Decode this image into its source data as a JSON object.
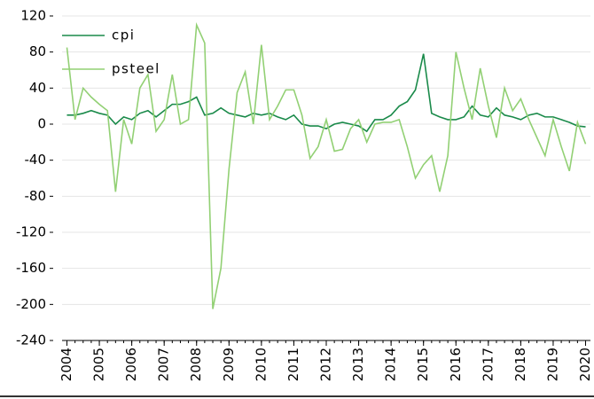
{
  "chart_data": {
    "type": "line",
    "x": [
      2004,
      2004.25,
      2004.5,
      2004.75,
      2005,
      2005.25,
      2005.5,
      2005.75,
      2006,
      2006.25,
      2006.5,
      2006.75,
      2007,
      2007.25,
      2007.5,
      2007.75,
      2008,
      2008.25,
      2008.5,
      2008.75,
      2009,
      2009.25,
      2009.5,
      2009.75,
      2010,
      2010.25,
      2010.5,
      2010.75,
      2011,
      2011.25,
      2011.5,
      2011.75,
      2012,
      2012.25,
      2012.5,
      2012.75,
      2013,
      2013.25,
      2013.5,
      2013.75,
      2014,
      2014.25,
      2014.5,
      2014.75,
      2015,
      2015.25,
      2015.5,
      2015.75,
      2016,
      2016.25,
      2016.5,
      2016.75,
      2017,
      2017.25,
      2017.5,
      2017.75,
      2018,
      2018.25,
      2018.5,
      2018.75,
      2019,
      2019.25,
      2019.5,
      2019.75,
      2020
    ],
    "series": [
      {
        "name": "cpi",
        "color": "#1a8a4a",
        "values": [
          10,
          10,
          12,
          15,
          12,
          10,
          0,
          8,
          5,
          12,
          15,
          8,
          15,
          22,
          22,
          25,
          30,
          10,
          12,
          18,
          12,
          10,
          8,
          12,
          10,
          12,
          8,
          5,
          10,
          0,
          -2,
          -2,
          -5,
          0,
          2,
          0,
          -2,
          -8,
          5,
          5,
          10,
          20,
          25,
          38,
          78,
          12,
          8,
          5,
          5,
          8,
          20,
          10,
          8,
          18,
          10,
          8,
          5,
          10,
          12,
          8,
          8,
          5,
          2,
          -2,
          -3
        ]
      },
      {
        "name": "psteel",
        "color": "#92d074",
        "values": [
          85,
          5,
          40,
          30,
          22,
          15,
          -75,
          5,
          -22,
          40,
          55,
          -8,
          5,
          55,
          0,
          5,
          110,
          90,
          -205,
          -160,
          -50,
          35,
          58,
          0,
          88,
          5,
          20,
          38,
          38,
          10,
          -38,
          -25,
          5,
          -30,
          -28,
          -5,
          5,
          -20,
          0,
          2,
          2,
          5,
          -25,
          -60,
          -45,
          -35,
          -75,
          -35,
          80,
          40,
          5,
          62,
          20,
          -15,
          40,
          15,
          28,
          5,
          -15,
          -35,
          5,
          -25,
          -52,
          2,
          -22
        ]
      }
    ],
    "xlim": [
      2003.85,
      2020.15
    ],
    "xticks": [
      2004,
      2005,
      2006,
      2007,
      2008,
      2009,
      2010,
      2011,
      2012,
      2013,
      2014,
      2015,
      2016,
      2017,
      2018,
      2019,
      2020
    ],
    "ylim": [
      -240,
      120
    ],
    "yticks": [
      -240,
      -200,
      -160,
      -120,
      -80,
      -40,
      0,
      40,
      80,
      120
    ],
    "grid": true,
    "legend": "upper left"
  }
}
